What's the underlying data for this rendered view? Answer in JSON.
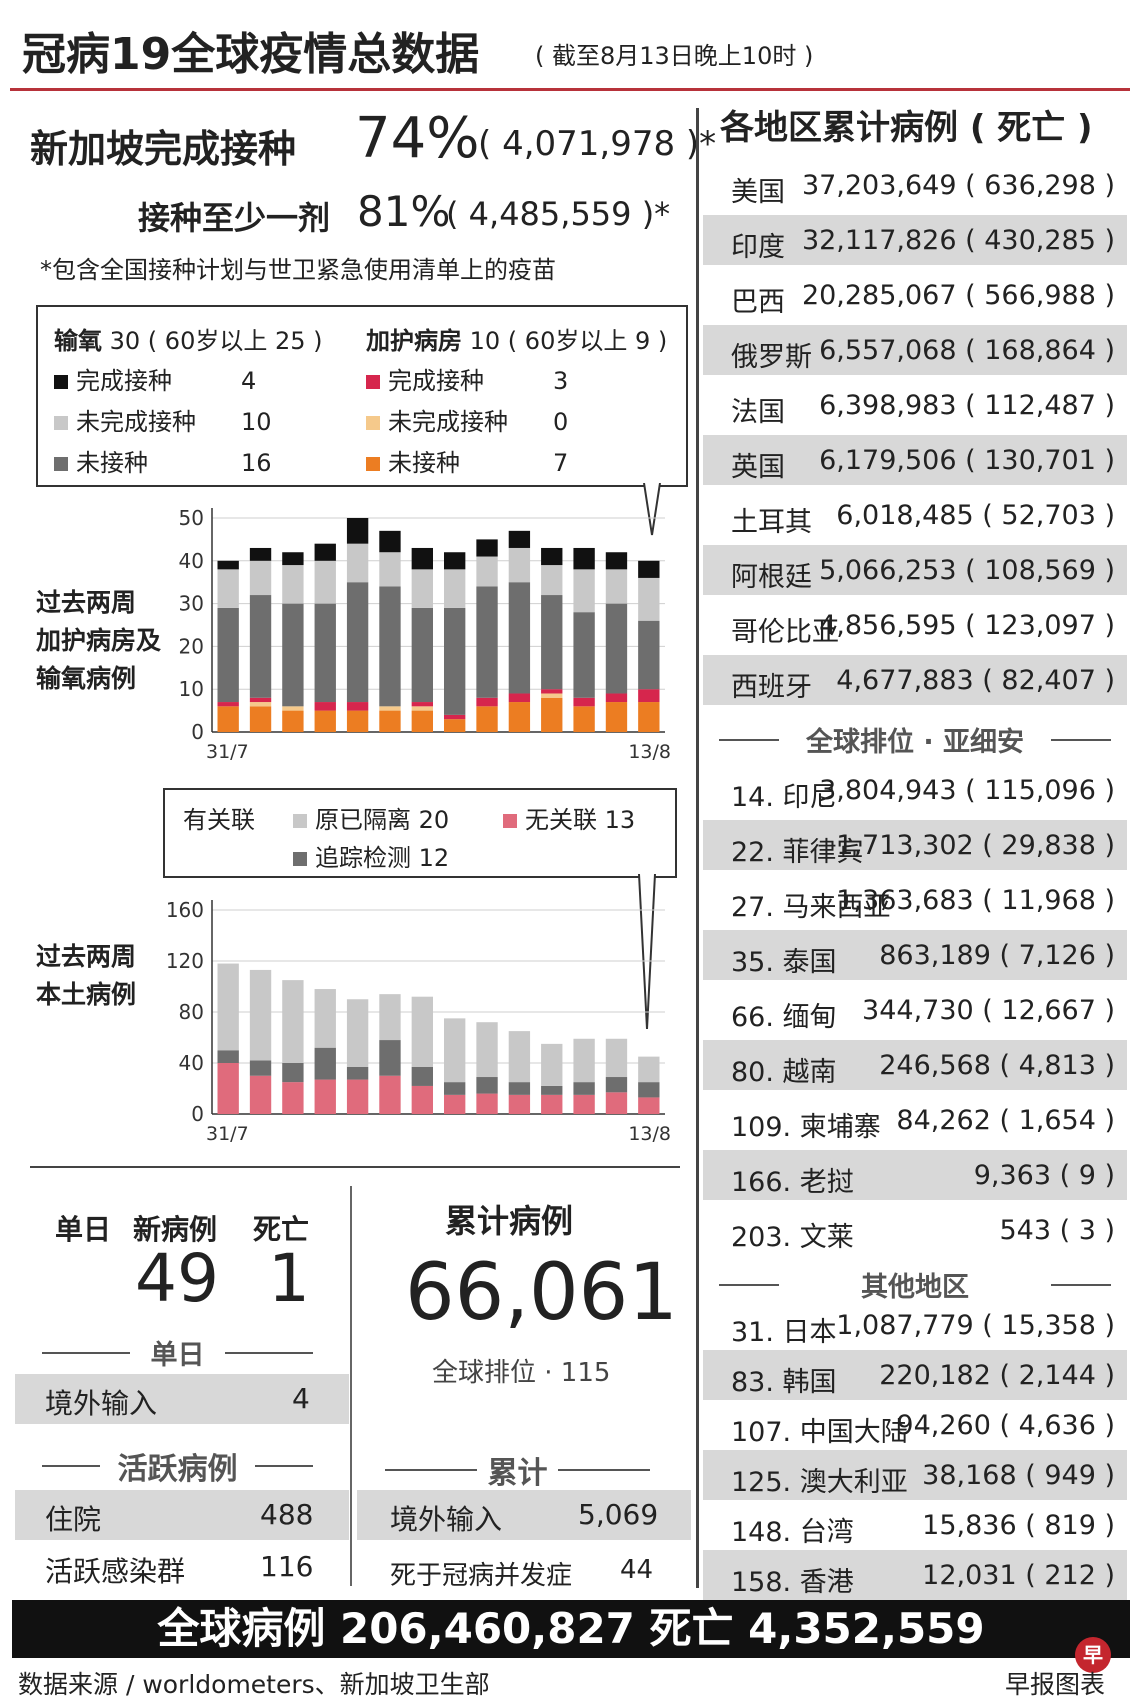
{
  "title": "冠病19全球疫情总数据",
  "subtitle": "( 截至8月13日晚上10时 )",
  "vaccination": {
    "full_label": "新加坡完成接种",
    "full_pct": "74%",
    "full_count": "( 4,071,978 )*",
    "partial_label": "接种至少一剂",
    "partial_pct": "81%",
    "partial_count": "( 4,485,559 )*",
    "note": "*包含全国接种计划与世卫紧急使用清单上的疫苗"
  },
  "oxygen_legend": {
    "oxygen_title": "输氧",
    "oxygen_total": "30 ( 60岁以上 25 )",
    "icu_title": "加护病房",
    "icu_total": "10 ( 60岁以上 9 )",
    "ox_items": [
      {
        "label": "完成接种",
        "value": "4",
        "color": "#111111"
      },
      {
        "label": "未完成接种",
        "value": "10",
        "color": "#c8c8c8"
      },
      {
        "label": "未接种",
        "value": "16",
        "color": "#6e6e6e"
      }
    ],
    "icu_items": [
      {
        "label": "完成接种",
        "value": "3",
        "color": "#d6264d"
      },
      {
        "label": "未完成接种",
        "value": "0",
        "color": "#f5c98b"
      },
      {
        "label": "未接种",
        "value": "7",
        "color": "#ec7d22"
      }
    ]
  },
  "chart1_side_label": [
    "过去两周",
    "加护病房及",
    "输氧病例"
  ],
  "chart2_side_label": [
    "过去两周",
    "本土病例"
  ],
  "local_legend": {
    "linked": "有关联",
    "quarantine": "原已隔离 20",
    "tracing": "追踪检测 12",
    "unlinked": "无关联 13"
  },
  "chart_data": [
    {
      "type": "bar",
      "stacked": true,
      "x_start": "31/7",
      "x_end": "13/8",
      "yticks": [
        "50",
        "40",
        "30",
        "20",
        "10",
        "0"
      ],
      "ylim": [
        0,
        50
      ],
      "series": [
        {
          "name": "未接种 (加护病房)",
          "color": "#ec7d22",
          "values": [
            6,
            6,
            5,
            5,
            5,
            5,
            5,
            3,
            6,
            7,
            8,
            6,
            7,
            7
          ]
        },
        {
          "name": "未完成接种 (加护病房)",
          "color": "#f5c98b",
          "values": [
            0,
            1,
            1,
            0,
            0,
            1,
            1,
            0,
            0,
            0,
            1,
            0,
            0,
            0
          ]
        },
        {
          "name": "完成接种 (加护病房)",
          "color": "#d6264d",
          "values": [
            1,
            1,
            0,
            2,
            2,
            0,
            1,
            1,
            2,
            2,
            1,
            2,
            2,
            3
          ]
        },
        {
          "name": "未接种 (输氧)",
          "color": "#6e6e6e",
          "values": [
            22,
            24,
            24,
            23,
            28,
            28,
            22,
            25,
            26,
            26,
            22,
            20,
            21,
            16
          ]
        },
        {
          "name": "未完成接种 (输氧)",
          "color": "#c8c8c8",
          "values": [
            9,
            8,
            9,
            10,
            9,
            8,
            9,
            9,
            7,
            8,
            7,
            10,
            8,
            10
          ]
        },
        {
          "name": "完成接种 (输氧)",
          "color": "#111111",
          "values": [
            2,
            3,
            3,
            4,
            6,
            5,
            5,
            4,
            4,
            4,
            4,
            5,
            4,
            4
          ]
        }
      ]
    },
    {
      "type": "bar",
      "stacked": true,
      "x_start": "31/7",
      "x_end": "13/8",
      "yticks": [
        "160",
        "120",
        "80",
        "40",
        "0"
      ],
      "ylim": [
        0,
        160
      ],
      "series": [
        {
          "name": "无关联",
          "color": "#e06b7c",
          "values": [
            40,
            30,
            25,
            27,
            27,
            30,
            22,
            15,
            16,
            15,
            15,
            15,
            17,
            13
          ]
        },
        {
          "name": "追踪检测",
          "color": "#6e6e6e",
          "values": [
            10,
            12,
            15,
            25,
            10,
            28,
            15,
            10,
            13,
            10,
            7,
            10,
            12,
            12
          ]
        },
        {
          "name": "原已隔离",
          "color": "#c8c8c8",
          "values": [
            68,
            71,
            65,
            46,
            53,
            36,
            55,
            50,
            43,
            40,
            33,
            34,
            30,
            20
          ]
        }
      ]
    }
  ],
  "daily": {
    "label_daily": "单日",
    "label_new": "新病例",
    "label_death": "死亡",
    "new_cases": "49",
    "deaths": "1",
    "section_daily": "单日",
    "imported_label": "境外输入",
    "imported_value": "4",
    "section_active": "活跃病例",
    "hospital_label": "住院",
    "hospital_value": "488",
    "cluster_label": "活跃感染群",
    "cluster_value": "116"
  },
  "cumulative": {
    "title": "累计病例",
    "total": "66,061",
    "rank": "全球排位 · 115",
    "section": "累计",
    "imported_label": "境外输入",
    "imported_value": "5,069",
    "deaths_label": "死于冠病并发症",
    "deaths_value": "44"
  },
  "regions": {
    "title": "各地区累计病例 ( 死亡 )",
    "top": [
      {
        "country": "美国",
        "value": "37,203,649 ( 636,298 )"
      },
      {
        "country": "印度",
        "value": "32,117,826 ( 430,285 )"
      },
      {
        "country": "巴西",
        "value": "20,285,067 ( 566,988 )"
      },
      {
        "country": "俄罗斯",
        "value": "6,557,068 ( 168,864 )"
      },
      {
        "country": "法国",
        "value": "6,398,983 ( 112,487 )"
      },
      {
        "country": "英国",
        "value": "6,179,506 ( 130,701 )"
      },
      {
        "country": "土耳其",
        "value": "6,018,485 ( 52,703 )"
      },
      {
        "country": "阿根廷",
        "value": "5,066,253 ( 108,569 )"
      },
      {
        "country": "哥伦比亚",
        "value": "4,856,595 ( 123,097 )"
      },
      {
        "country": "西班牙",
        "value": "4,677,883 ( 82,407 )"
      }
    ],
    "asean_title": "全球排位 · 亚细安",
    "asean": [
      {
        "country": "14. 印尼",
        "value": "3,804,943 ( 115,096 )"
      },
      {
        "country": "22. 菲律宾",
        "value": "1,713,302 ( 29,838 )"
      },
      {
        "country": "27. 马来西亚",
        "value": "1,363,683 ( 11,968 )"
      },
      {
        "country": "35. 泰国",
        "value": "863,189 ( 7,126 )"
      },
      {
        "country": "66. 缅甸",
        "value": "344,730 ( 12,667 )"
      },
      {
        "country": "80. 越南",
        "value": "246,568 ( 4,813 )"
      },
      {
        "country": "109. 柬埔寨",
        "value": "84,262 ( 1,654 )"
      },
      {
        "country": "166. 老挝",
        "value": "9,363 ( 9 )"
      },
      {
        "country": "203. 文莱",
        "value": "543 ( 3 )"
      }
    ],
    "other_title": "其他地区",
    "other": [
      {
        "country": "31. 日本",
        "value": "1,087,779 ( 15,358 )"
      },
      {
        "country": "83. 韩国",
        "value": "220,182 ( 2,144 )"
      },
      {
        "country": "107. 中国大陆",
        "value": "94,260 ( 4,636 )"
      },
      {
        "country": "125. 澳大利亚",
        "value": "38,168 ( 949 )"
      },
      {
        "country": "148. 台湾",
        "value": "15,836 ( 819 )"
      },
      {
        "country": "158. 香港",
        "value": "12,031 ( 212 )"
      }
    ]
  },
  "footer": {
    "global": "全球病例 206,460,827   死亡 4,352,559",
    "source": "数据来源 / worldometers、新加坡卫生部",
    "credit": "早报图表",
    "logo": "早"
  }
}
